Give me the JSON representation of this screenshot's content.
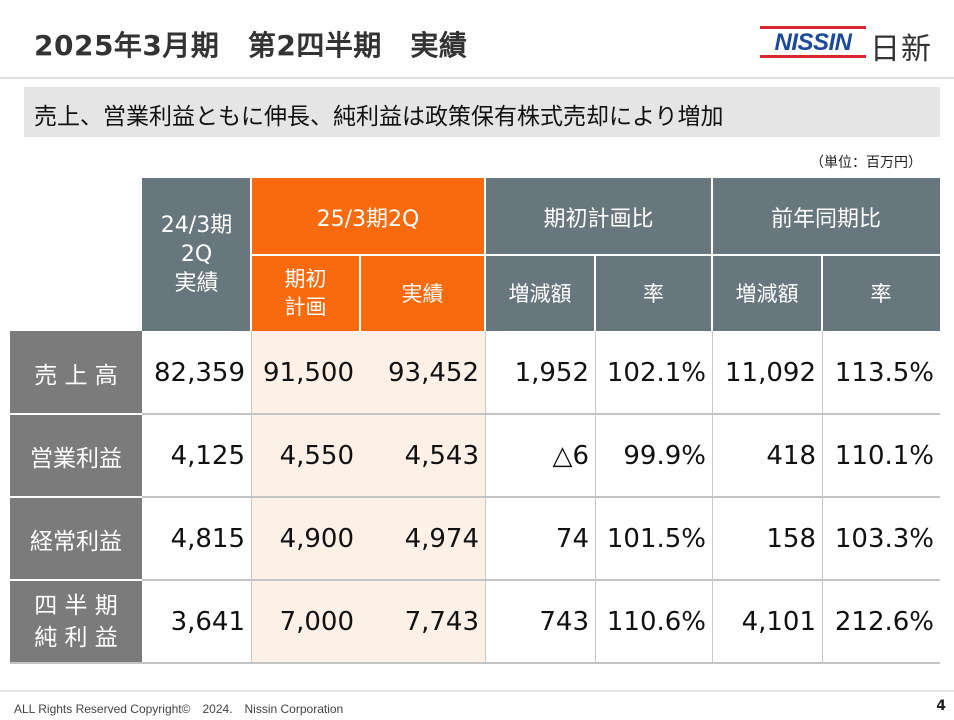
{
  "header": {
    "title": "2025年3月期　第2四半期　実績",
    "logo_text": "NISSIN",
    "logo_jp": "日新"
  },
  "subtitle": "売上、営業利益ともに伸長、純利益は政策保有株式売却により増加",
  "unit": "（単位：百万円）",
  "table": {
    "col_prev_line1": "24/3期",
    "col_prev_line2": "2Q",
    "col_prev_line3": "実績",
    "col_current": "25/3期2Q",
    "col_plan_line1": "期初",
    "col_plan_line2": "計画",
    "col_actual": "実績",
    "group_plan_ratio": "期初計画比",
    "group_yoy": "前年同期比",
    "sub_diff": "増減額",
    "sub_rate": "率",
    "rows": [
      {
        "label": "売 上 高",
        "label2": "",
        "prev": "82,359",
        "plan": "91,500",
        "actual": "93,452",
        "plan_diff": "1,952",
        "plan_rate": "102.1%",
        "yoy_diff": "11,092",
        "yoy_rate": "113.5%"
      },
      {
        "label": "営業利益",
        "label2": "",
        "prev": "4,125",
        "plan": "4,550",
        "actual": "4,543",
        "plan_diff": "△6",
        "plan_rate": "99.9%",
        "yoy_diff": "418",
        "yoy_rate": "110.1%"
      },
      {
        "label": "経常利益",
        "label2": "",
        "prev": "4,815",
        "plan": "4,900",
        "actual": "4,974",
        "plan_diff": "74",
        "plan_rate": "101.5%",
        "yoy_diff": "158",
        "yoy_rate": "103.3%"
      },
      {
        "label": "四 半 期",
        "label2": "純 利 益",
        "prev": "3,641",
        "plan": "7,000",
        "actual": "7,743",
        "plan_diff": "743",
        "plan_rate": "110.6%",
        "yoy_diff": "4,101",
        "yoy_rate": "212.6%"
      }
    ]
  },
  "footer": {
    "copyright": "ALL Rights Reserved Copyright©　2024.　Nissin Corporation",
    "page_number": "4"
  },
  "colors": {
    "header_gray": "#68777e",
    "accent_orange": "#f96a0f",
    "row_label_gray": "#7b7b7b",
    "highlight_peach": "#fdf0e7",
    "logo_blue": "#1c4b9b",
    "logo_red": "#d8282e"
  }
}
